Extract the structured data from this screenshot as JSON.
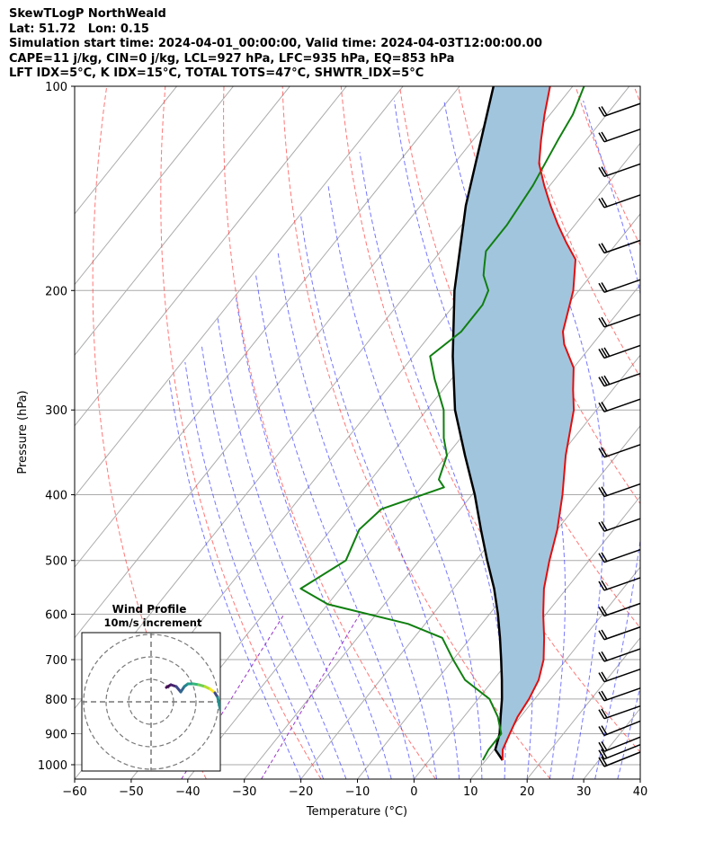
{
  "header": {
    "line1": "SkewTLogP NorthWeald",
    "line2": "Lat: 51.72   Lon: 0.15",
    "line3": "Simulation start time: 2024-04-01_00:00:00, Valid time: 2024-04-03T12:00:00.00",
    "line4": "CAPE=11 j/kg, CIN=0 j/kg, LCL=927 hPa, LFC=935 hPa, EQ=853 hPa",
    "line5": "LFT IDX=5°C, K IDX=15°C, TOTAL TOTS=47°C, SHWTR_IDX=5°C"
  },
  "colors": {
    "temperature": "#e01010",
    "dewpoint": "#107f10",
    "parcel": "#000000",
    "cape_fill": "#a2c5de",
    "dry_adiabat": "#ff3c3c",
    "moist_adiabat": "#3c3cff",
    "isotherm": "#aaaaaa",
    "mixing_ratio": "#9933cc"
  },
  "chart_data": {
    "type": "skewt-logp",
    "xlabel": "Temperature (°C)",
    "ylabel": "Pressure (hPa)",
    "xlim": [
      -60,
      40
    ],
    "ylim": [
      1050,
      100
    ],
    "y_scale": "log",
    "grid": true,
    "x_ticks": [
      "−60",
      "−50",
      "−40",
      "−30",
      "−20",
      "−10",
      "0",
      "10",
      "20",
      "30",
      "40"
    ],
    "y_ticks": [
      "1000",
      "900",
      "800",
      "700",
      "600",
      "500",
      "400",
      "300",
      "200",
      "100"
    ],
    "temperature": {
      "pressure": [
        985,
        950,
        900,
        850,
        800,
        750,
        700,
        650,
        600,
        550,
        500,
        450,
        400,
        350,
        300,
        280,
        260,
        240,
        230,
        200,
        180,
        170,
        160,
        150,
        140,
        130,
        120,
        110,
        100
      ],
      "values": [
        13,
        11.5,
        10.5,
        9.5,
        9,
        8,
        6,
        3,
        -0.5,
        -4,
        -7,
        -10,
        -14,
        -19,
        -24,
        -27,
        -30,
        -35,
        -37,
        -41,
        -45,
        -49,
        -53,
        -57,
        -61,
        -65,
        -68,
        -71,
        -74
      ]
    },
    "dewpoint": {
      "pressure": [
        985,
        950,
        900,
        850,
        800,
        750,
        700,
        650,
        620,
        580,
        550,
        500,
        450,
        420,
        390,
        380,
        350,
        330,
        300,
        270,
        250,
        230,
        210,
        200,
        190,
        185,
        175,
        160,
        140,
        120,
        110,
        100
      ],
      "values": [
        9.5,
        9,
        9,
        6,
        2,
        -5,
        -10,
        -15,
        -23,
        -40,
        -47,
        -43,
        -45,
        -44,
        -36,
        -38,
        -40,
        -43,
        -47,
        -53,
        -57,
        -55,
        -55,
        -56,
        -59,
        -60,
        -62,
        -62,
        -63,
        -65,
        -66,
        -68
      ]
    },
    "parcel": {
      "pressure": [
        985,
        950,
        900,
        850,
        800,
        750,
        700,
        650,
        600,
        550,
        500,
        450,
        400,
        350,
        300,
        250,
        200,
        150,
        100
      ],
      "values": [
        13,
        10.2,
        8.7,
        6.5,
        4.2,
        1.5,
        -1.5,
        -4.8,
        -8.5,
        -12.8,
        -18,
        -23.5,
        -29.5,
        -36.8,
        -45,
        -53,
        -62,
        -72,
        -84
      ]
    },
    "wind_barbs_pressure": [
      1000,
      975,
      950,
      900,
      850,
      800,
      750,
      700,
      650,
      600,
      550,
      500,
      450,
      400,
      350,
      300,
      275,
      250,
      225,
      200,
      175,
      150,
      135,
      120,
      110
    ],
    "hodograph": {
      "title": "Wind Profile",
      "subtitle": "10m/s increment",
      "rings_ms": [
        10,
        20,
        30
      ]
    }
  }
}
